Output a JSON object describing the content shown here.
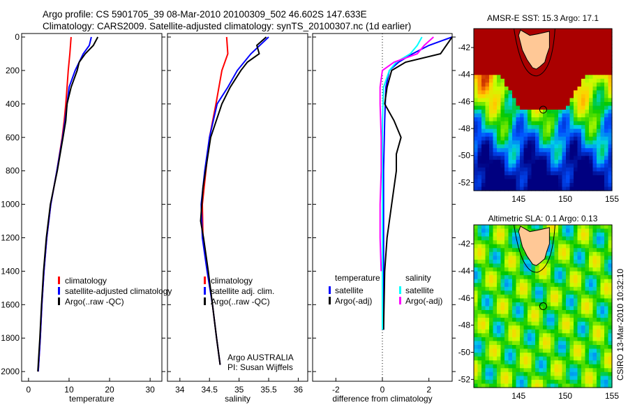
{
  "title_lines": [
    "Argo profile: CS 5901705_39 08-Mar-2010 20100309_502 46.602S 147.633E",
    "Climatology: CARS2009. Satellite-adjusted climatology: synTS_20100307.nc (1d earlier)"
  ],
  "footer": "CSIRO 13-Mar-2010 10:32:10",
  "chart_data": [
    {
      "type": "line",
      "xlabel": "temperature",
      "xlim": [
        -1.7,
        32.9
      ],
      "ylim": [
        2058,
        -21
      ],
      "xticks": [
        0,
        10,
        20,
        30
      ],
      "yticks": [
        0,
        200,
        400,
        600,
        800,
        1000,
        1200,
        1400,
        1600,
        1800,
        2000
      ],
      "legend": [
        "climatology",
        "satellite-adjusted climatology",
        "Argo(..raw -QC)"
      ],
      "legend_position": "lower-right",
      "series": [
        {
          "name": "climatology",
          "color": "#ff0000",
          "depth": [
            0,
            100,
            200,
            300,
            400,
            500,
            600,
            800,
            1000,
            1200,
            1400,
            1600,
            1800,
            2000
          ],
          "values": [
            10.5,
            10.2,
            9.8,
            9.5,
            9.2,
            8.8,
            8.3,
            7,
            5.5,
            4.5,
            3.8,
            3.3,
            2.9,
            2.4
          ]
        },
        {
          "name": "satellite-adjusted climatology",
          "color": "#0000ff",
          "depth": [
            0,
            50,
            100,
            200,
            300,
            400,
            500,
            600,
            800,
            1000,
            1200,
            1400,
            1600,
            1800,
            2000
          ],
          "values": [
            15.5,
            15,
            13.5,
            11.5,
            10,
            9.5,
            9,
            8.4,
            7,
            5.5,
            4.5,
            3.8,
            3.3,
            2.9,
            2.4
          ]
        },
        {
          "name": "Argo(..raw -QC)",
          "color": "#000000",
          "depth": [
            0,
            50,
            100,
            150,
            200,
            300,
            400,
            500,
            600,
            700,
            800,
            1000,
            1200,
            1400,
            1600,
            1800,
            2000
          ],
          "values": [
            17.1,
            16,
            14,
            12.5,
            12,
            10.5,
            9.5,
            9.2,
            8.5,
            7.8,
            7.1,
            5.4,
            4.4,
            3.7,
            3.2,
            2.8,
            2.3
          ]
        }
      ]
    },
    {
      "type": "line",
      "xlabel": "salinity",
      "xlim": [
        33.79,
        36.16
      ],
      "ylim": [
        2058,
        -21
      ],
      "xticks": [
        34,
        34.5,
        35,
        35.5,
        36
      ],
      "legend": [
        "climatology",
        "satellite adj. clim.",
        "Argo(..raw -QC)"
      ],
      "legend_position": "lower-right",
      "annotations": [
        "Argo AUSTRALIA",
        "PI: Susan Wijffels"
      ],
      "series": [
        {
          "name": "climatology",
          "color": "#ff0000",
          "depth": [
            0,
            100,
            200,
            400,
            600,
            800,
            1000,
            1200,
            1400,
            1600,
            1800,
            1960
          ],
          "values": [
            34.79,
            34.81,
            34.71,
            34.61,
            34.5,
            34.44,
            34.38,
            34.39,
            34.47,
            34.55,
            34.62,
            34.68
          ]
        },
        {
          "name": "satellite adj. clim.",
          "color": "#0000ff",
          "depth": [
            0,
            100,
            200,
            300,
            400,
            600,
            800,
            1000,
            1200,
            1400,
            1600,
            1800,
            1960
          ],
          "values": [
            35.5,
            35.2,
            34.97,
            34.81,
            34.63,
            34.5,
            34.42,
            34.36,
            34.38,
            34.46,
            34.55,
            34.62,
            34.68
          ]
        },
        {
          "name": "Argo(..raw -QC)",
          "color": "#000000",
          "depth": [
            0,
            50,
            100,
            150,
            200,
            300,
            400,
            600,
            900,
            1100,
            1200,
            1400,
            1600,
            1800,
            1960
          ],
          "values": [
            35.46,
            35.3,
            35.34,
            35.14,
            35.03,
            34.85,
            34.71,
            34.52,
            34.39,
            34.35,
            34.4,
            34.48,
            34.55,
            34.62,
            34.68
          ]
        }
      ]
    },
    {
      "type": "line",
      "xlabel": "difference from climatology",
      "xlim": [
        -3,
        3
      ],
      "ylim": [
        2058,
        -21
      ],
      "xticks": [
        -2,
        0,
        2
      ],
      "legend_groups": [
        {
          "title": "temperature",
          "items": [
            "satellite",
            "Argo(-adj)"
          ]
        },
        {
          "title": "salinity",
          "items": [
            "satellite",
            "Argo(-adj)"
          ]
        }
      ],
      "series": [
        {
          "name": "temperature satellite",
          "color": "#0000ff",
          "depth": [
            0,
            50,
            100,
            150,
            200,
            300,
            500,
            800,
            1000,
            1400,
            1750
          ],
          "values": [
            3.0,
            2.0,
            1.3,
            0.7,
            0.3,
            0.15,
            0.1,
            0.05,
            0.05,
            0.05,
            0.05
          ]
        },
        {
          "name": "temperature Argo(-adj)",
          "color": "#000000",
          "depth": [
            0,
            100,
            150,
            200,
            300,
            400,
            500,
            600,
            700,
            800,
            1000,
            1200,
            1400,
            1750
          ],
          "values": [
            3.0,
            2.5,
            1.0,
            0.4,
            0.2,
            0.1,
            0.5,
            0.8,
            0.6,
            0.6,
            0.4,
            0.2,
            0.1,
            0.05
          ]
        },
        {
          "name": "salinity satellite",
          "color": "#00ffff",
          "depth": [
            0,
            50,
            100,
            150,
            200,
            300,
            500,
            800,
            1000,
            1400,
            1750
          ],
          "values": [
            1.7,
            1.5,
            1.2,
            0.6,
            0.3,
            0.05,
            0.0,
            0.0,
            0.0,
            0.0,
            0.0
          ]
        },
        {
          "name": "salinity Argo(-adj)",
          "color": "#ff00ff",
          "depth": [
            0,
            50,
            100,
            150,
            200,
            300,
            400,
            600,
            800,
            1000,
            1200,
            1400
          ],
          "values": [
            2.2,
            1.8,
            1.5,
            0.5,
            0.0,
            -0.1,
            -0.1,
            -0.05,
            -0.05,
            -0.1,
            -0.1,
            -0.05
          ]
        }
      ]
    },
    {
      "type": "heatmap",
      "title": "AMSR-E SST: 15.3 Argo: 17.1",
      "xlim": [
        140.2,
        155
      ],
      "ylim": [
        -52.6,
        -40.6
      ],
      "xticks": [
        145,
        150,
        155
      ],
      "yticks": [
        -42,
        -44,
        -46,
        -48,
        -50,
        -52
      ],
      "marker": {
        "lon": 147.633,
        "lat": -46.602
      }
    },
    {
      "type": "heatmap",
      "title": "Altimetric SLA: 0.1 Argo: 0.13",
      "xlim": [
        140.2,
        155
      ],
      "ylim": [
        -52.6,
        -40.6
      ],
      "xticks": [
        145,
        150,
        155
      ],
      "yticks": [
        -42,
        -44,
        -46,
        -48,
        -50,
        -52
      ],
      "marker": {
        "lon": 147.633,
        "lat": -46.602
      }
    }
  ]
}
